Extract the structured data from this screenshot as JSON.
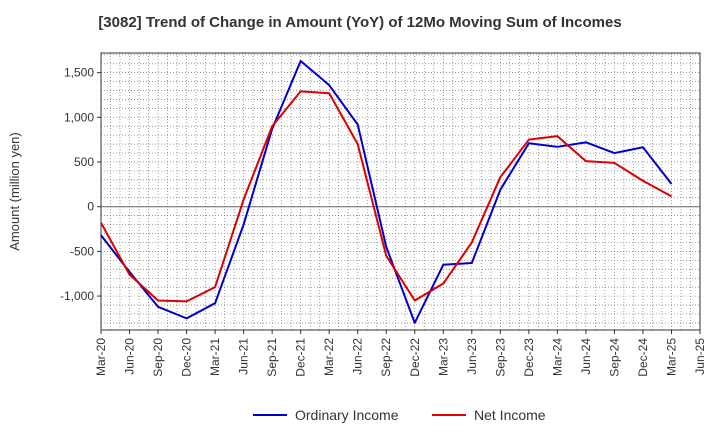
{
  "chart_data": {
    "type": "line",
    "title": "[3082]  Trend of Change in Amount (YoY) of 12Mo Moving Sum of Incomes",
    "ylabel": "Amount (million yen)",
    "xlabel": "",
    "ylim": [
      -1380,
      1720
    ],
    "yticks": [
      -1000,
      -500,
      0,
      500,
      1000,
      1500
    ],
    "ytick_labels": [
      "-1,000",
      "-500",
      "0",
      "500",
      "1,000",
      "1,500"
    ],
    "x_tick_labels": [
      "Mar-20",
      "Jun-20",
      "Sep-20",
      "Dec-20",
      "Mar-21",
      "Jun-21",
      "Sep-21",
      "Dec-21",
      "Mar-22",
      "Jun-22",
      "Sep-22",
      "Dec-22",
      "Mar-23",
      "Jun-23",
      "Sep-23",
      "Dec-23",
      "Mar-24",
      "Jun-24",
      "Sep-24",
      "Dec-24",
      "Mar-25",
      "Jun-25"
    ],
    "categories": [
      "Mar-20",
      "Apr-20",
      "May-20",
      "Jun-20",
      "Jul-20",
      "Aug-20",
      "Sep-20",
      "Oct-20",
      "Nov-20",
      "Dec-20",
      "Jan-21",
      "Feb-21",
      "Mar-21",
      "Apr-21",
      "May-21",
      "Jun-21",
      "Jul-21",
      "Aug-21",
      "Sep-21",
      "Oct-21",
      "Nov-21",
      "Dec-21",
      "Jan-22",
      "Feb-22",
      "Mar-22",
      "Apr-22",
      "May-22",
      "Jun-22",
      "Jul-22",
      "Aug-22",
      "Sep-22",
      "Oct-22",
      "Nov-22",
      "Dec-22",
      "Jan-23",
      "Feb-23",
      "Mar-23",
      "Apr-23",
      "May-23",
      "Jun-23",
      "Jul-23",
      "Aug-23",
      "Sep-23",
      "Oct-23",
      "Nov-23",
      "Dec-23",
      "Jan-24",
      "Feb-24",
      "Mar-24",
      "Apr-24",
      "May-24",
      "Jun-24",
      "Jul-24",
      "Aug-24",
      "Sep-24",
      "Oct-24",
      "Nov-24",
      "Dec-24",
      "Jan-25",
      "Feb-25",
      "Mar-25",
      "Apr-25",
      "May-25",
      "Jun-25"
    ],
    "grid": true,
    "legend_position": "bottom-center",
    "series": [
      {
        "name": "Ordinary Income",
        "color": "#0000cc",
        "points": [
          {
            "x": "Mar-20",
            "y": -320
          },
          {
            "x": "Jun-20",
            "y": -730
          },
          {
            "x": "Sep-20",
            "y": -1120
          },
          {
            "x": "Dec-20",
            "y": -1250
          },
          {
            "x": "Mar-21",
            "y": -1080
          },
          {
            "x": "Jun-21",
            "y": -200
          },
          {
            "x": "Sep-21",
            "y": 870
          },
          {
            "x": "Dec-21",
            "y": 1630
          },
          {
            "x": "Mar-22",
            "y": 1360
          },
          {
            "x": "Jun-22",
            "y": 920
          },
          {
            "x": "Sep-22",
            "y": -450
          },
          {
            "x": "Dec-22",
            "y": -1300
          },
          {
            "x": "Mar-23",
            "y": -650
          },
          {
            "x": "Jun-23",
            "y": -630
          },
          {
            "x": "Sep-23",
            "y": 190
          },
          {
            "x": "Dec-23",
            "y": 710
          },
          {
            "x": "Mar-24",
            "y": 670
          },
          {
            "x": "Jun-24",
            "y": 720
          },
          {
            "x": "Sep-24",
            "y": 600
          },
          {
            "x": "Dec-24",
            "y": 665
          },
          {
            "x": "Mar-25",
            "y": 255
          }
        ]
      },
      {
        "name": "Net Income",
        "color": "#dd0000",
        "points": [
          {
            "x": "Mar-20",
            "y": -180
          },
          {
            "x": "Jun-20",
            "y": -760
          },
          {
            "x": "Sep-20",
            "y": -1050
          },
          {
            "x": "Dec-20",
            "y": -1060
          },
          {
            "x": "Mar-21",
            "y": -900
          },
          {
            "x": "Jun-21",
            "y": 80
          },
          {
            "x": "Sep-21",
            "y": 900
          },
          {
            "x": "Dec-21",
            "y": 1290
          },
          {
            "x": "Mar-22",
            "y": 1270
          },
          {
            "x": "Jun-22",
            "y": 700
          },
          {
            "x": "Sep-22",
            "y": -550
          },
          {
            "x": "Dec-22",
            "y": -1050
          },
          {
            "x": "Mar-23",
            "y": -860
          },
          {
            "x": "Jun-23",
            "y": -400
          },
          {
            "x": "Sep-23",
            "y": 330
          },
          {
            "x": "Dec-23",
            "y": 750
          },
          {
            "x": "Mar-24",
            "y": 790
          },
          {
            "x": "Jun-24",
            "y": 510
          },
          {
            "x": "Sep-24",
            "y": 490
          },
          {
            "x": "Dec-24",
            "y": 290
          },
          {
            "x": "Mar-25",
            "y": 115
          }
        ]
      }
    ]
  }
}
